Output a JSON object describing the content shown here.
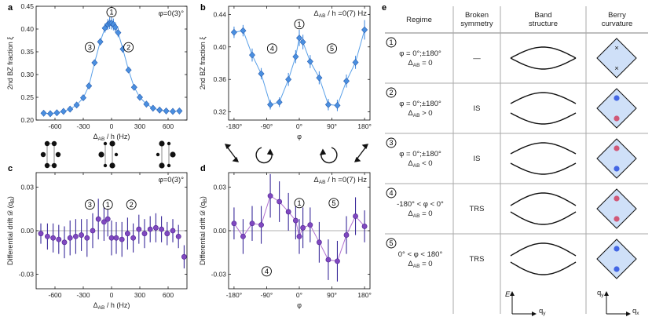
{
  "panel_letters": {
    "a": "a",
    "b": "b",
    "c": "c",
    "d": "d",
    "e": "e"
  },
  "chart_data": [
    {
      "id": "a",
      "type": "line",
      "title": "φ=0(3)°",
      "xlabel": "Δ_AB / h (Hz)",
      "ylabel": "2nd BZ fraction ξ",
      "xlim": [
        -800,
        800
      ],
      "ylim": [
        0.2,
        0.45
      ],
      "xticks": [
        -600,
        -300,
        0,
        300,
        600
      ],
      "xtick_labels": [
        "-600",
        "-300",
        "0",
        "300",
        "600"
      ],
      "yticks": [
        0.2,
        0.25,
        0.3,
        0.35,
        0.4,
        0.45
      ],
      "ytick_labels": [
        "0.20",
        "0.25",
        "0.30",
        "0.35",
        "0.40",
        "0.45"
      ],
      "x": [
        -720,
        -650,
        -580,
        -510,
        -440,
        -370,
        -300,
        -240,
        -180,
        -120,
        -70,
        -40,
        -20,
        0,
        20,
        40,
        70,
        120,
        180,
        240,
        300,
        370,
        440,
        510,
        580,
        650,
        720
      ],
      "y": [
        0.215,
        0.214,
        0.216,
        0.219,
        0.224,
        0.233,
        0.249,
        0.275,
        0.326,
        0.372,
        0.402,
        0.41,
        0.413,
        0.413,
        0.41,
        0.404,
        0.392,
        0.356,
        0.31,
        0.272,
        0.25,
        0.235,
        0.226,
        0.222,
        0.22,
        0.219,
        0.22
      ],
      "err": [
        0.003,
        0.003,
        0.003,
        0.003,
        0.003,
        0.004,
        0.004,
        0.005,
        0.006,
        0.008,
        0.01,
        0.012,
        0.013,
        0.014,
        0.013,
        0.011,
        0.01,
        0.008,
        0.006,
        0.005,
        0.004,
        0.004,
        0.003,
        0.003,
        0.003,
        0.003,
        0.003
      ],
      "regime_marks": [
        {
          "label": "1",
          "x": 0,
          "y": 0.437
        },
        {
          "label": "3",
          "x": -230,
          "y": 0.36
        },
        {
          "label": "2",
          "x": 180,
          "y": 0.36
        }
      ]
    },
    {
      "id": "b",
      "type": "line",
      "title": "Δ_AB / h =0(7) Hz",
      "xlabel": "φ",
      "ylabel": "2nd BZ fraction ξ",
      "xlim": [
        -195,
        195
      ],
      "ylim": [
        0.31,
        0.45
      ],
      "xticks": [
        -180,
        -90,
        0,
        90,
        180
      ],
      "xtick_labels": [
        "-180°",
        "-90°",
        "0°",
        "90°",
        "180°"
      ],
      "yticks": [
        0.32,
        0.36,
        0.4,
        0.44
      ],
      "ytick_labels": [
        "0.32",
        "0.36",
        "0.40",
        "0.44"
      ],
      "x": [
        -180,
        -155,
        -130,
        -105,
        -80,
        -55,
        -30,
        -10,
        0,
        10,
        30,
        55,
        80,
        105,
        130,
        155,
        180
      ],
      "y": [
        0.418,
        0.42,
        0.39,
        0.367,
        0.329,
        0.332,
        0.36,
        0.388,
        0.411,
        0.406,
        0.382,
        0.362,
        0.329,
        0.328,
        0.358,
        0.381,
        0.421
      ],
      "err": [
        0.007,
        0.007,
        0.008,
        0.007,
        0.006,
        0.006,
        0.008,
        0.008,
        0.01,
        0.009,
        0.008,
        0.008,
        0.007,
        0.007,
        0.008,
        0.008,
        0.012
      ],
      "regime_marks": [
        {
          "label": "1",
          "x": 0,
          "y": 0.428
        },
        {
          "label": "4",
          "x": -75,
          "y": 0.398
        },
        {
          "label": "5",
          "x": 90,
          "y": 0.398
        }
      ]
    },
    {
      "id": "c",
      "type": "scatter",
      "title": "φ=0(3)°",
      "xlabel": "Δ_AB / h (Hz)",
      "ylabel": "Differential drift 𝒟 (q_B)",
      "xlim": [
        -800,
        800
      ],
      "ylim": [
        -0.04,
        0.04
      ],
      "xticks": [
        -600,
        -300,
        0,
        300,
        600
      ],
      "xtick_labels": [
        "-600",
        "-300",
        "0",
        "300",
        "600"
      ],
      "yticks": [
        -0.03,
        0.0,
        0.03
      ],
      "ytick_labels": [
        "-0.03",
        "0.00",
        "0.03"
      ],
      "x": [
        -750,
        -680,
        -620,
        -560,
        -500,
        -440,
        -380,
        -320,
        -260,
        -200,
        -140,
        -80,
        -40,
        0,
        50,
        110,
        170,
        230,
        290,
        350,
        410,
        470,
        530,
        590,
        650,
        710,
        770
      ],
      "y": [
        -0.002,
        -0.004,
        -0.005,
        -0.006,
        -0.008,
        -0.005,
        -0.004,
        -0.003,
        -0.005,
        0.0,
        0.008,
        0.006,
        0.008,
        -0.005,
        -0.005,
        -0.006,
        -0.002,
        -0.005,
        0.001,
        -0.002,
        0.001,
        0.002,
        0.001,
        -0.002,
        0.0,
        -0.004,
        -0.018
      ],
      "err": [
        0.007,
        0.009,
        0.01,
        0.01,
        0.011,
        0.012,
        0.012,
        0.011,
        0.013,
        0.012,
        0.014,
        0.013,
        0.012,
        0.012,
        0.011,
        0.012,
        0.011,
        0.01,
        0.01,
        0.01,
        0.009,
        0.01,
        0.009,
        0.008,
        0.008,
        0.008,
        0.008
      ],
      "regime_marks": [
        {
          "label": "3",
          "x": -230,
          "y": 0.018
        },
        {
          "label": "1",
          "x": -40,
          "y": 0.018
        },
        {
          "label": "2",
          "x": 210,
          "y": 0.018
        }
      ]
    },
    {
      "id": "d",
      "type": "scatter",
      "title": "Δ_AB / h =0(7) Hz",
      "xlabel": "φ",
      "ylabel": "Differential drift 𝒟 (q_B)",
      "xlim": [
        -195,
        195
      ],
      "ylim": [
        -0.04,
        0.04
      ],
      "xticks": [
        -180,
        -90,
        0,
        90,
        180
      ],
      "xtick_labels": [
        "-180°",
        "-90°",
        "0°",
        "90°",
        "180°"
      ],
      "yticks": [
        -0.03,
        0.0,
        0.03
      ],
      "ytick_labels": [
        "-0.03",
        "0.00",
        "0.03"
      ],
      "x": [
        -180,
        -155,
        -130,
        -105,
        -80,
        -55,
        -30,
        -10,
        0,
        10,
        30,
        55,
        80,
        105,
        130,
        155,
        180
      ],
      "y": [
        0.005,
        -0.004,
        0.005,
        0.004,
        0.024,
        0.02,
        0.013,
        0.007,
        -0.004,
        0.002,
        0.004,
        -0.008,
        -0.02,
        -0.021,
        -0.003,
        0.01,
        0.003
      ],
      "err": [
        0.011,
        0.012,
        0.012,
        0.013,
        0.015,
        0.014,
        0.013,
        0.013,
        0.012,
        0.014,
        0.012,
        0.014,
        0.014,
        0.014,
        0.013,
        0.013,
        0.011
      ],
      "regime_marks": [
        {
          "label": "1",
          "x": 0,
          "y": 0.019
        },
        {
          "label": "5",
          "x": 95,
          "y": 0.019
        },
        {
          "label": "4",
          "x": -90,
          "y": -0.028
        }
      ]
    }
  ],
  "table": {
    "headers": [
      "Regime",
      "Broken\nsymmetry",
      "Band\nstructure",
      "Berry\ncurvature"
    ],
    "rows": [
      {
        "num": "1",
        "cond": [
          "φ = 0°;±180°",
          "Δ_AB = 0"
        ],
        "sym": "—",
        "band": "cross",
        "berry": "x"
      },
      {
        "num": "2",
        "cond": [
          "φ = 0°;±180°",
          "Δ_AB > 0"
        ],
        "sym": "IS",
        "band": "gap",
        "berry": "blue-top"
      },
      {
        "num": "3",
        "cond": [
          "φ = 0°;±180°",
          "Δ_AB < 0"
        ],
        "sym": "IS",
        "band": "gap",
        "berry": "red-top"
      },
      {
        "num": "4",
        "cond": [
          "-180° < φ < 0°",
          "Δ_AB = 0"
        ],
        "sym": "TRS",
        "band": "split",
        "berry": "red-both"
      },
      {
        "num": "5",
        "cond": [
          "0° < φ < 180°",
          "Δ_AB = 0"
        ],
        "sym": "TRS",
        "band": "split",
        "berry": "blue-both"
      }
    ],
    "axis_labels": {
      "energy": "E",
      "band_k": "q_y",
      "berry_y": "q_y",
      "berry_x": "q_x"
    }
  },
  "colors": {
    "blue": "#4a8fe0",
    "blue_line": "#5aa0e8",
    "purple": "#8048c0",
    "purple_line": "#b070d0",
    "error_bar_purple": "#3a2a9a"
  }
}
